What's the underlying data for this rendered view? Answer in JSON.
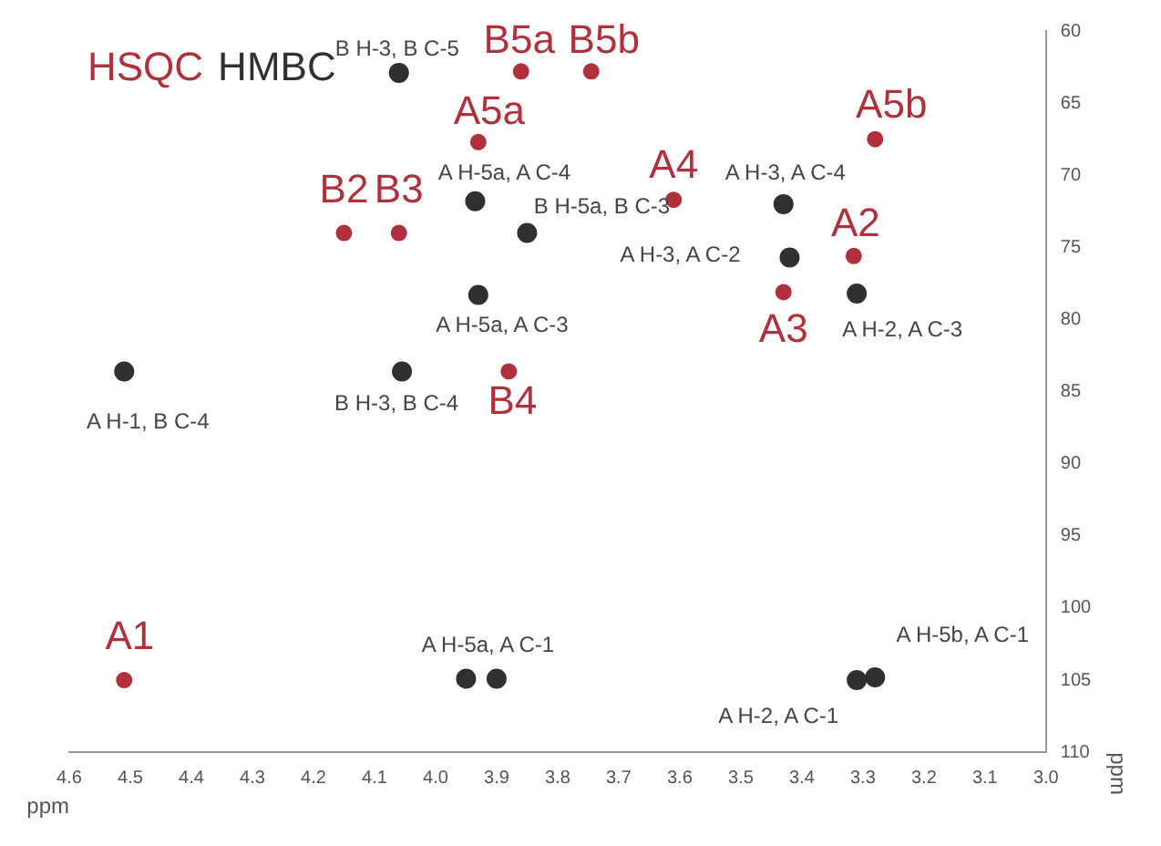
{
  "chart_data": {
    "type": "scatter",
    "xlabel": "ppm",
    "ylabel": "ppm",
    "legend": "top left",
    "marker": "circle",
    "grid": false,
    "xlim": [
      4.6,
      3.0
    ],
    "ylim": [
      110,
      60
    ],
    "xticks": [
      4.6,
      4.5,
      4.4,
      4.3,
      4.2,
      4.1,
      {
        "value": 4,
        "label": "4.0"
      },
      3.9,
      3.8,
      3.7,
      3.6,
      3.5,
      3.4,
      3.3,
      3.2,
      3.1,
      {
        "value": 3,
        "label": "3.0"
      }
    ],
    "yticks": [
      60,
      65,
      70,
      75,
      80,
      85,
      90,
      95,
      100,
      105,
      110
    ],
    "series": [
      {
        "name": "HSQC",
        "color": "#b0303c",
        "x": [
          4.51,
          4.15,
          4.06,
          3.93,
          3.86,
          3.745,
          3.28,
          3.61,
          3.315,
          3.43,
          3.88
        ],
        "values": [
          105,
          74,
          74,
          67.7,
          62.8,
          62.8,
          67.5,
          71.7,
          75.6,
          78.1,
          83.6
        ]
      },
      {
        "name": "HMBC",
        "color": "#303030",
        "x": [
          4.51,
          4.055,
          4.06,
          3.935,
          3.85,
          3.93,
          3.43,
          3.42,
          3.31,
          3.95,
          3.9,
          3.31,
          3.28
        ],
        "values": [
          83.6,
          83.6,
          62.9,
          71.8,
          74,
          78.3,
          72,
          75.7,
          78.2,
          104.9,
          104.9,
          105,
          104.8
        ]
      }
    ],
    "annotations": [
      {
        "text": "A1",
        "x": 4.51,
        "y": 105
      },
      {
        "text": "B2",
        "x": 4.15,
        "y": 74
      },
      {
        "text": "B3",
        "x": 4.06,
        "y": 74
      },
      {
        "text": "A5a",
        "x": 3.93,
        "y": 67.7
      },
      {
        "text": "B5a",
        "x": 3.86,
        "y": 62.8
      },
      {
        "text": "B5b",
        "x": 3.745,
        "y": 62.8
      },
      {
        "text": "A5b",
        "x": 3.28,
        "y": 67.5
      },
      {
        "text": "A4",
        "x": 3.61,
        "y": 71.7
      },
      {
        "text": "A2",
        "x": 3.315,
        "y": 75.6
      },
      {
        "text": "A3",
        "x": 3.43,
        "y": 78.1
      },
      {
        "text": "B4",
        "x": 3.88,
        "y": 83.6
      },
      {
        "text": "A H-1, B C-4",
        "x": 4.51,
        "y": 83.6
      },
      {
        "text": "B H-3, B C-4",
        "x": 4.055,
        "y": 83.6
      },
      {
        "text": "B H-3, B C-5",
        "x": 4.06,
        "y": 62.9
      },
      {
        "text": "A H-5a, A C-4",
        "x": 3.935,
        "y": 71.8
      },
      {
        "text": "B H-5a, B C-3",
        "x": 3.85,
        "y": 74
      },
      {
        "text": "A H-5a, A C-3",
        "x": 3.93,
        "y": 78.3
      },
      {
        "text": "A H-3, A C-4",
        "x": 3.43,
        "y": 72
      },
      {
        "text": "A H-3, A C-2",
        "x": 3.42,
        "y": 75.7
      },
      {
        "text": "A H-2, A C-3",
        "x": 3.31,
        "y": 78.2
      },
      {
        "text": "A H-5a, A C-1",
        "x": 3.95,
        "y": 104.9
      },
      {
        "text": "A H-5b, A C-1",
        "x": 3.28,
        "y": 104.8
      },
      {
        "text": "A H-2, A C-1",
        "x": 3.31,
        "y": 105
      }
    ]
  }
}
